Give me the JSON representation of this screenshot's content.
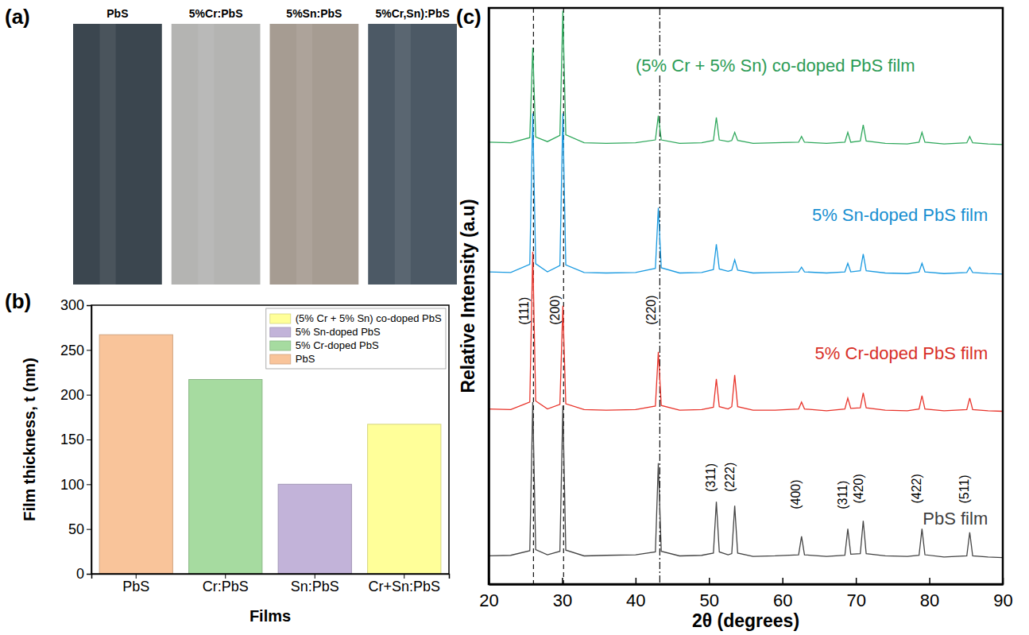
{
  "chart_data": [
    {
      "type": "image",
      "panel": "(a)",
      "categories": [
        "PbS",
        "5%Cr:PbS",
        "5%Sn:PbS",
        "5%Cr,Sn):PbS"
      ],
      "colors": [
        "#3b464f",
        "#b4b4b2",
        "#a69c92",
        "#4c5965"
      ]
    },
    {
      "type": "bar",
      "panel": "(b)",
      "x_label": "Films",
      "y_label": "Film thickness, t (nm)",
      "categories": [
        "PbS",
        "Cr:PbS",
        "Sn:PbS",
        "Cr+Sn:PbS"
      ],
      "series": [
        {
          "name": "(5% Cr + 5% Sn) co-doped PbS",
          "color": "#ffff99",
          "values": [
            null,
            null,
            null,
            167
          ]
        },
        {
          "name": "5% Sn-doped PbS",
          "color": "#c2b3d9",
          "values": [
            null,
            null,
            100,
            null
          ]
        },
        {
          "name": "5% Cr-doped PbS",
          "color": "#a6dba0",
          "values": [
            null,
            217,
            null,
            null
          ]
        },
        {
          "name": "PbS",
          "color": "#f9c49a",
          "values": [
            267,
            null,
            null,
            null
          ]
        }
      ],
      "ylim": [
        0,
        300
      ],
      "yticks": [
        0,
        50,
        100,
        150,
        200,
        250,
        300
      ],
      "legend": "upper right",
      "grid": false
    },
    {
      "type": "line",
      "panel": "(c)",
      "x_label": "2θ (degrees)",
      "y_label": "Relative Intensity (a.u)",
      "x": [
        20,
        23,
        25.6,
        26.0,
        26.4,
        28,
        29.7,
        30.1,
        30.5,
        33,
        36,
        40,
        42.7,
        43.1,
        43.5,
        46,
        49,
        50.6,
        51.0,
        51.4,
        52.6,
        53.1,
        53.5,
        53.9,
        56,
        59,
        62.2,
        62.6,
        63.0,
        66,
        68.5,
        68.9,
        69.3,
        70.6,
        71.0,
        71.4,
        74,
        77,
        78.6,
        79.0,
        79.4,
        82,
        85.1,
        85.5,
        85.9,
        88,
        90
      ],
      "series": [
        {
          "name": "PbS film",
          "color": "#444444",
          "values": [
            4.9,
            5.0,
            5.8,
            31.6,
            6.0,
            5.1,
            5.7,
            31.0,
            5.9,
            4.9,
            5.0,
            5.1,
            5.6,
            21.0,
            5.7,
            4.9,
            5.0,
            5.4,
            14.3,
            5.6,
            5.1,
            5.3,
            13.6,
            5.4,
            4.8,
            4.9,
            5.1,
            8.3,
            5.1,
            4.8,
            5.0,
            9.6,
            5.2,
            5.3,
            11.0,
            5.3,
            4.9,
            4.8,
            5.0,
            9.6,
            5.1,
            4.7,
            4.9,
            9.0,
            4.9,
            4.7,
            4.6
          ]
        },
        {
          "name": "5% Cr-doped PbS film",
          "color": "#e8332a",
          "values": [
            30.4,
            30.3,
            31.6,
            57.7,
            31.8,
            30.4,
            31.2,
            48.3,
            31.3,
            30.3,
            30.2,
            30.3,
            30.9,
            40.3,
            31.0,
            30.2,
            30.3,
            30.7,
            35.6,
            30.8,
            30.4,
            30.8,
            36.3,
            30.8,
            30.2,
            30.2,
            30.4,
            31.6,
            30.4,
            30.1,
            30.4,
            32.3,
            30.5,
            30.6,
            33.2,
            30.6,
            30.2,
            30.1,
            30.4,
            32.7,
            30.4,
            30.1,
            30.3,
            32.3,
            30.3,
            30.1,
            30.0
          ]
        },
        {
          "name": "5% Sn-doped PbS film",
          "color": "#1a9ae0",
          "values": [
            54.2,
            54.1,
            55.5,
            81.7,
            55.6,
            54.2,
            55.3,
            81.7,
            55.4,
            54.1,
            54.0,
            54.1,
            54.8,
            65.3,
            54.9,
            54.0,
            54.1,
            54.6,
            59.0,
            54.7,
            54.3,
            54.5,
            56.3,
            54.5,
            54.0,
            54.1,
            54.2,
            55.0,
            54.2,
            54.0,
            54.2,
            55.7,
            54.2,
            54.4,
            57.3,
            54.4,
            54.0,
            53.9,
            54.2,
            55.7,
            54.2,
            53.9,
            54.1,
            55.0,
            54.1,
            53.9,
            53.8
          ]
        },
        {
          "name": "(5% Cr + 5% Sn) co-doped PbS film",
          "color": "#2fa85c",
          "values": [
            76.7,
            76.6,
            77.5,
            93.1,
            77.6,
            76.8,
            77.9,
            99.5,
            78.0,
            76.6,
            76.5,
            76.6,
            77.1,
            81.3,
            77.1,
            76.5,
            76.6,
            77.0,
            81.0,
            77.1,
            76.8,
            77.0,
            78.4,
            77.0,
            76.5,
            76.6,
            76.7,
            77.7,
            76.7,
            76.5,
            76.7,
            78.4,
            76.7,
            76.9,
            79.7,
            76.9,
            76.5,
            76.4,
            76.7,
            78.4,
            76.7,
            76.4,
            76.6,
            77.7,
            76.6,
            76.4,
            76.3
          ]
        }
      ],
      "xlim": [
        20,
        90
      ],
      "xticks": [
        20,
        30,
        40,
        50,
        60,
        70,
        80,
        90
      ],
      "ylim": [
        0,
        100
      ],
      "tick_labels": "x",
      "vlines": [
        26.1,
        30.2,
        43.3
      ],
      "annotations": [
        {
          "text": "(111)",
          "x": 25.0,
          "y": 45
        },
        {
          "text": "(200)",
          "x": 29.2,
          "y": 45
        },
        {
          "text": "(220)",
          "x": 42.3,
          "y": 45
        },
        {
          "text": "(311)",
          "x": 50.4,
          "y": 16
        },
        {
          "text": "(222)",
          "x": 53.0,
          "y": 16
        },
        {
          "text": "(400)",
          "x": 62.0,
          "y": 13
        },
        {
          "text": "(311)",
          "x": 68.3,
          "y": 13
        },
        {
          "text": "(420)",
          "x": 70.5,
          "y": 14
        },
        {
          "text": "(422)",
          "x": 78.4,
          "y": 14
        },
        {
          "text": "(511)",
          "x": 84.9,
          "y": 14
        }
      ]
    }
  ]
}
